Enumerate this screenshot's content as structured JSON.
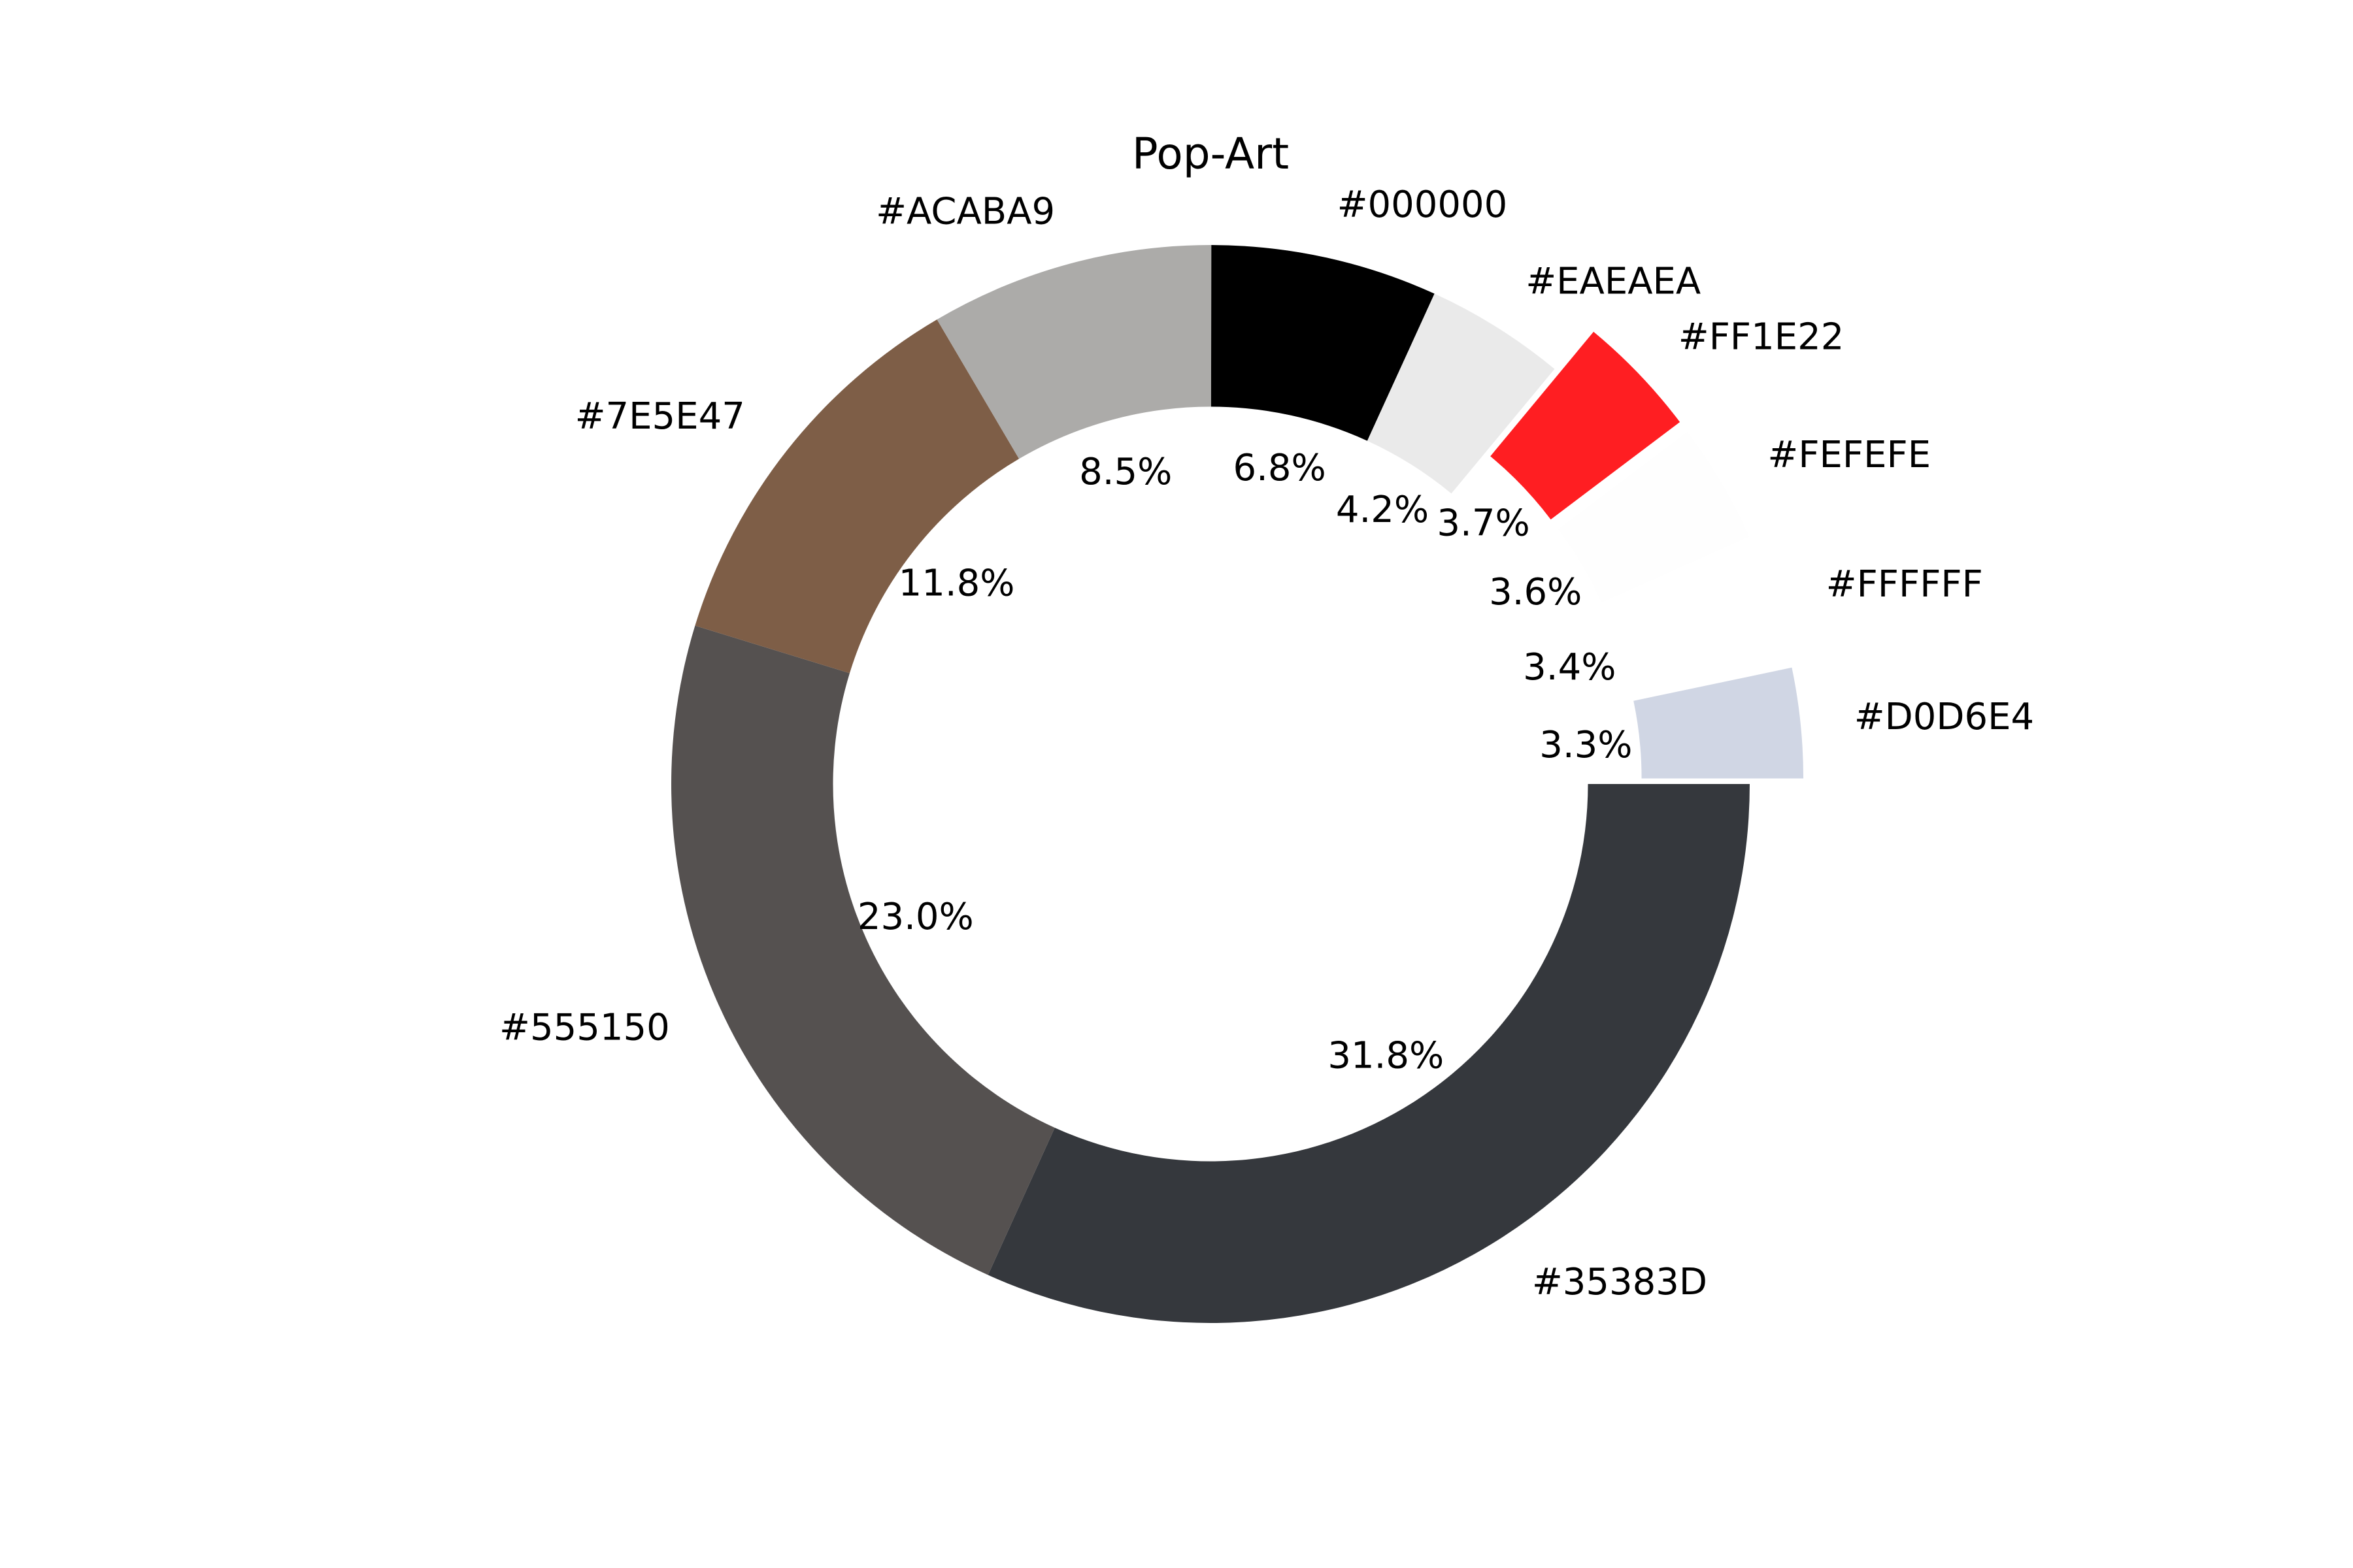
{
  "chart_data": {
    "type": "pie",
    "title": "Pop-Art",
    "donut": true,
    "legend": "none",
    "slices": [
      {
        "label": "#35383D",
        "value": 31.8,
        "percent_label": "31.8%",
        "color": "#35383D",
        "explode": 0
      },
      {
        "label": "#555150",
        "value": 23.0,
        "percent_label": "23.0%",
        "color": "#555150",
        "explode": 0
      },
      {
        "label": "#7E5E47",
        "value": 11.8,
        "percent_label": "11.8%",
        "color": "#7E5E47",
        "explode": 0
      },
      {
        "label": "#ACABA9",
        "value": 8.5,
        "percent_label": "8.5%",
        "color": "#ACABA9",
        "explode": 0
      },
      {
        "label": "#000000",
        "value": 6.8,
        "percent_label": "6.8%",
        "color": "#000000",
        "explode": 0
      },
      {
        "label": "#EAEAEA",
        "value": 4.2,
        "percent_label": "4.2%",
        "color": "#EAEAEA",
        "explode": 0
      },
      {
        "label": "#FF1E22",
        "value": 3.7,
        "percent_label": "3.7%",
        "color": "#FF1E22",
        "explode": 0.1
      },
      {
        "label": "#FEFEFE",
        "value": 3.6,
        "percent_label": "3.6%",
        "color": "#FEFEFE",
        "explode": 0.1
      },
      {
        "label": "#FFFFFF",
        "value": 3.4,
        "percent_label": "3.4%",
        "color": "#FFFFFF",
        "explode": 0.1
      },
      {
        "label": "#D0D6E4",
        "value": 3.3,
        "percent_label": "3.3%",
        "color": "#D0D6E4",
        "explode": 0.1
      }
    ]
  }
}
